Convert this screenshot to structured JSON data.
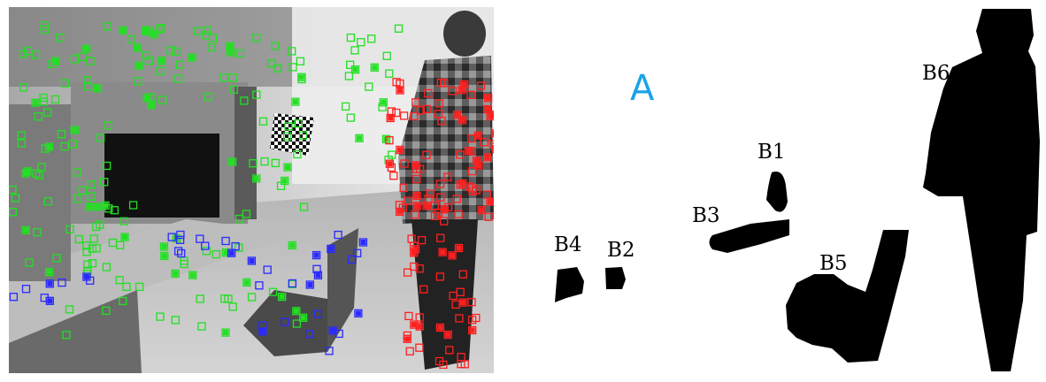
{
  "figure": {
    "panel_letter": "A",
    "panel_letter_color": "#1aa3e8",
    "marker_colors": {
      "static": "#22e022",
      "chair": "#2a2aff",
      "person": "#ff2020"
    },
    "regions": [
      {
        "id": "B1",
        "label": "B1"
      },
      {
        "id": "B2",
        "label": "B2"
      },
      {
        "id": "B3",
        "label": "B3"
      },
      {
        "id": "B4",
        "label": "B4"
      },
      {
        "id": "B5",
        "label": "B5"
      },
      {
        "id": "B6",
        "label": "B6"
      }
    ]
  }
}
